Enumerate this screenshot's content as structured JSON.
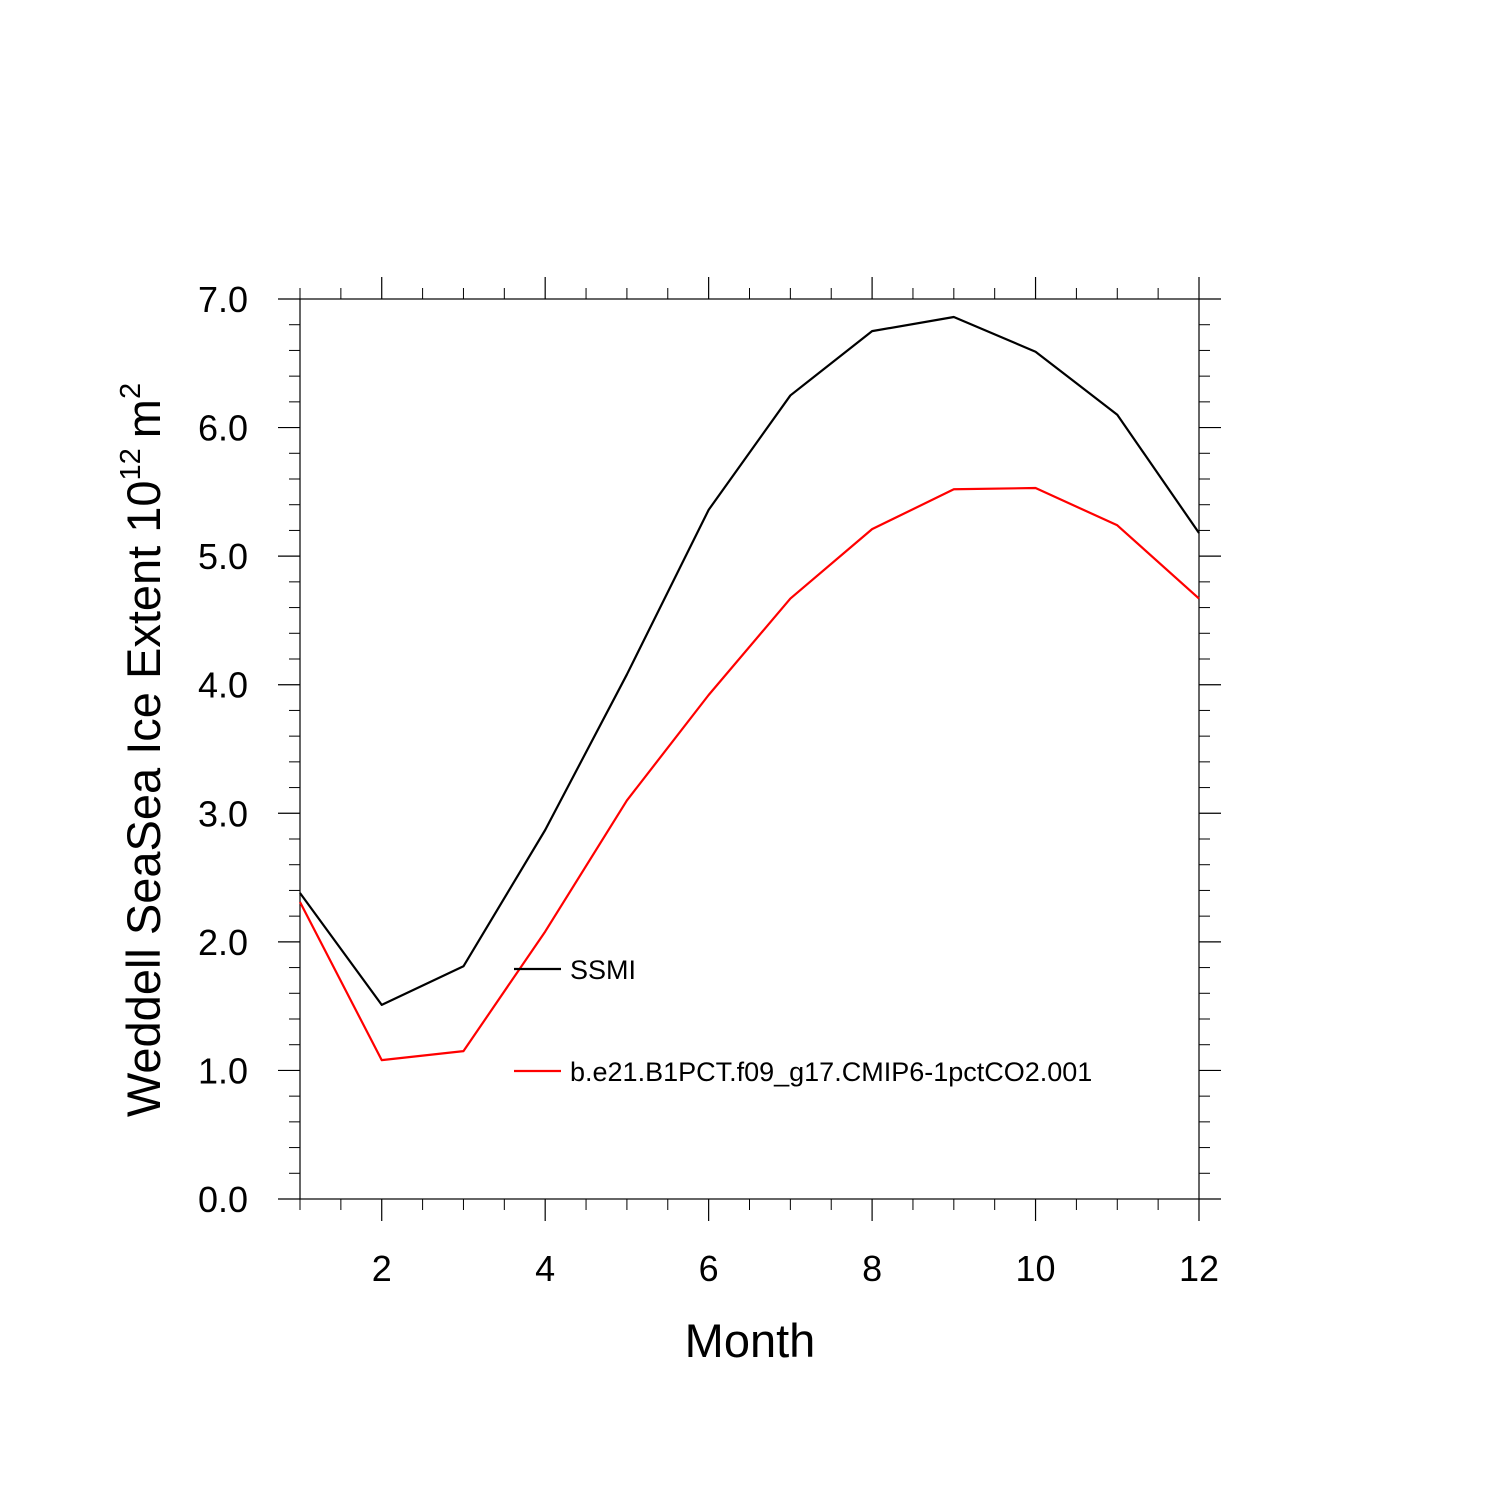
{
  "chart_data": {
    "type": "line",
    "title": "",
    "xlabel": "Month",
    "ylabel": {
      "prefix": "Weddell SeaSea Ice Extent 10",
      "exponent": "12",
      "unit_base": "m",
      "unit_exponent": "2"
    },
    "xlim": [
      1,
      12
    ],
    "ylim": [
      0,
      7
    ],
    "x_ticks": [
      2,
      4,
      6,
      8,
      10,
      12
    ],
    "x_tick_labels": [
      "2",
      "4",
      "6",
      "8",
      "10",
      "12"
    ],
    "y_ticks": [
      0,
      1,
      2,
      3,
      4,
      5,
      6,
      7
    ],
    "y_tick_labels": [
      "0.0",
      "1.0",
      "2.0",
      "3.0",
      "4.0",
      "5.0",
      "6.0",
      "7.0"
    ],
    "grid": false,
    "legend_position": "inside-lower-center",
    "x": [
      1,
      2,
      3,
      4,
      5,
      6,
      7,
      8,
      9,
      10,
      11,
      12
    ],
    "series": [
      {
        "name": "SSMI",
        "color": "#000000",
        "values": [
          2.38,
          1.51,
          1.81,
          2.87,
          4.08,
          5.36,
          6.25,
          6.75,
          6.86,
          6.59,
          6.1,
          5.18
        ]
      },
      {
        "name": "b.e21.B1PCT.f09_g17.CMIP6-1pctCO2.001",
        "color": "#ff0000",
        "values": [
          2.31,
          1.08,
          1.15,
          2.08,
          3.1,
          3.92,
          4.67,
          5.21,
          5.52,
          5.53,
          5.24,
          4.67
        ]
      }
    ]
  }
}
